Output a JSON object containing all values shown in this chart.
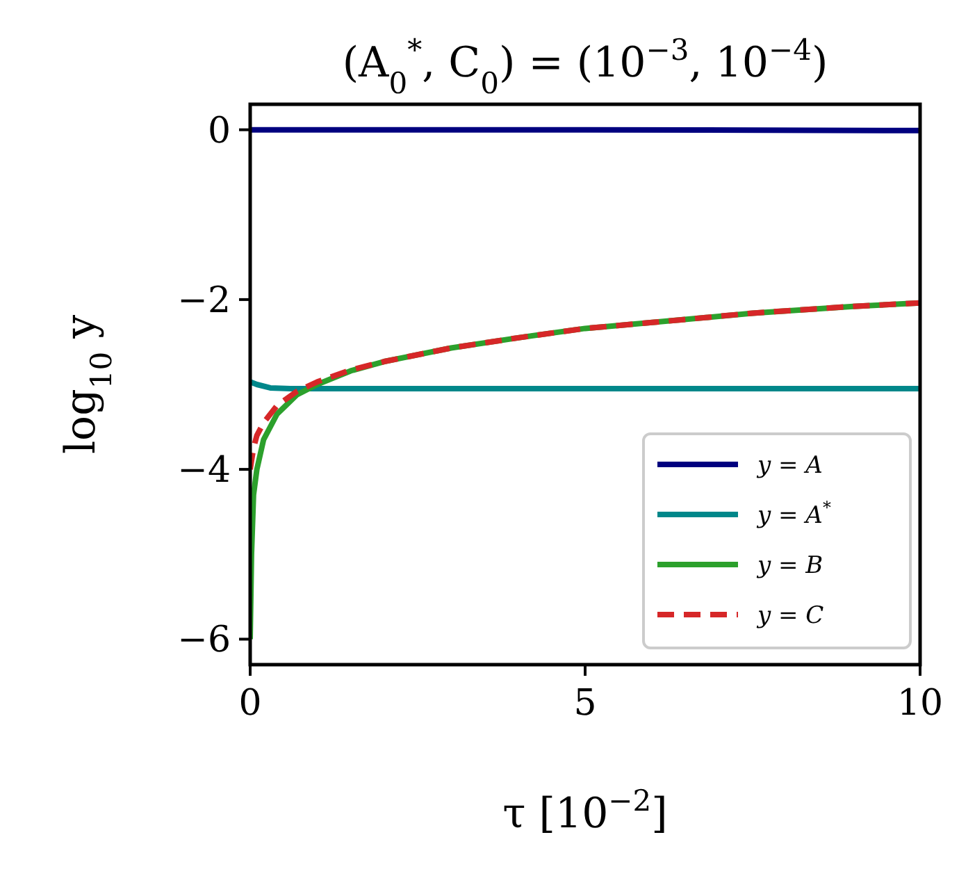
{
  "chart_data": {
    "type": "line",
    "title": "(A$_{0}$$^{*}$, C$_{0}$) = (10$^{−3}$, 10$^{−4}$)",
    "xlabel": "τ [10$^{−2}$]",
    "ylabel": "log$_{10}$ y",
    "xlim": [
      0,
      10
    ],
    "xticks": [
      0,
      5,
      10
    ],
    "ylim": [
      -6.3,
      0.3
    ],
    "yticks": [
      {
        "value": -6,
        "label": "−6"
      },
      {
        "value": -4,
        "label": "−4"
      },
      {
        "value": -2,
        "label": "−2"
      },
      0
    ],
    "legend": "bottom right",
    "series": [
      {
        "name": "y = A",
        "color": "#00007f",
        "line_style": "solid",
        "x": [
          0,
          5,
          10
        ],
        "values": [
          0,
          0,
          -0.01
        ]
      },
      {
        "name": "y = A$^{*}$",
        "color": "#00878a",
        "line_style": "solid",
        "x": [
          0,
          0.1,
          0.3,
          0.6,
          5,
          10
        ],
        "values": [
          -2.97,
          -3.0,
          -3.04,
          -3.05,
          -3.05,
          -3.05
        ]
      },
      {
        "name": "y = B",
        "color": "#2ca02c",
        "line_style": "solid",
        "x": [
          0,
          0.02,
          0.05,
          0.1,
          0.2,
          0.4,
          0.7,
          1,
          1.5,
          2,
          3,
          4,
          5,
          6,
          7.5,
          9,
          10
        ],
        "values": [
          -6,
          -5,
          -4.3,
          -4.0,
          -3.65,
          -3.35,
          -3.12,
          -3.0,
          -2.84,
          -2.73,
          -2.57,
          -2.45,
          -2.34,
          -2.27,
          -2.16,
          -2.08,
          -2.04
        ]
      },
      {
        "name": "y = C",
        "color": "#d62728",
        "line_style": "dashed",
        "x": [
          0,
          0.05,
          0.1,
          0.2,
          0.4,
          0.7,
          1,
          1.5,
          2,
          3,
          4,
          5,
          6,
          7.5,
          9,
          10
        ],
        "values": [
          -4.0,
          -3.75,
          -3.6,
          -3.45,
          -3.25,
          -3.08,
          -2.97,
          -2.83,
          -2.73,
          -2.57,
          -2.45,
          -2.34,
          -2.27,
          -2.16,
          -2.08,
          -2.04
        ]
      }
    ]
  }
}
